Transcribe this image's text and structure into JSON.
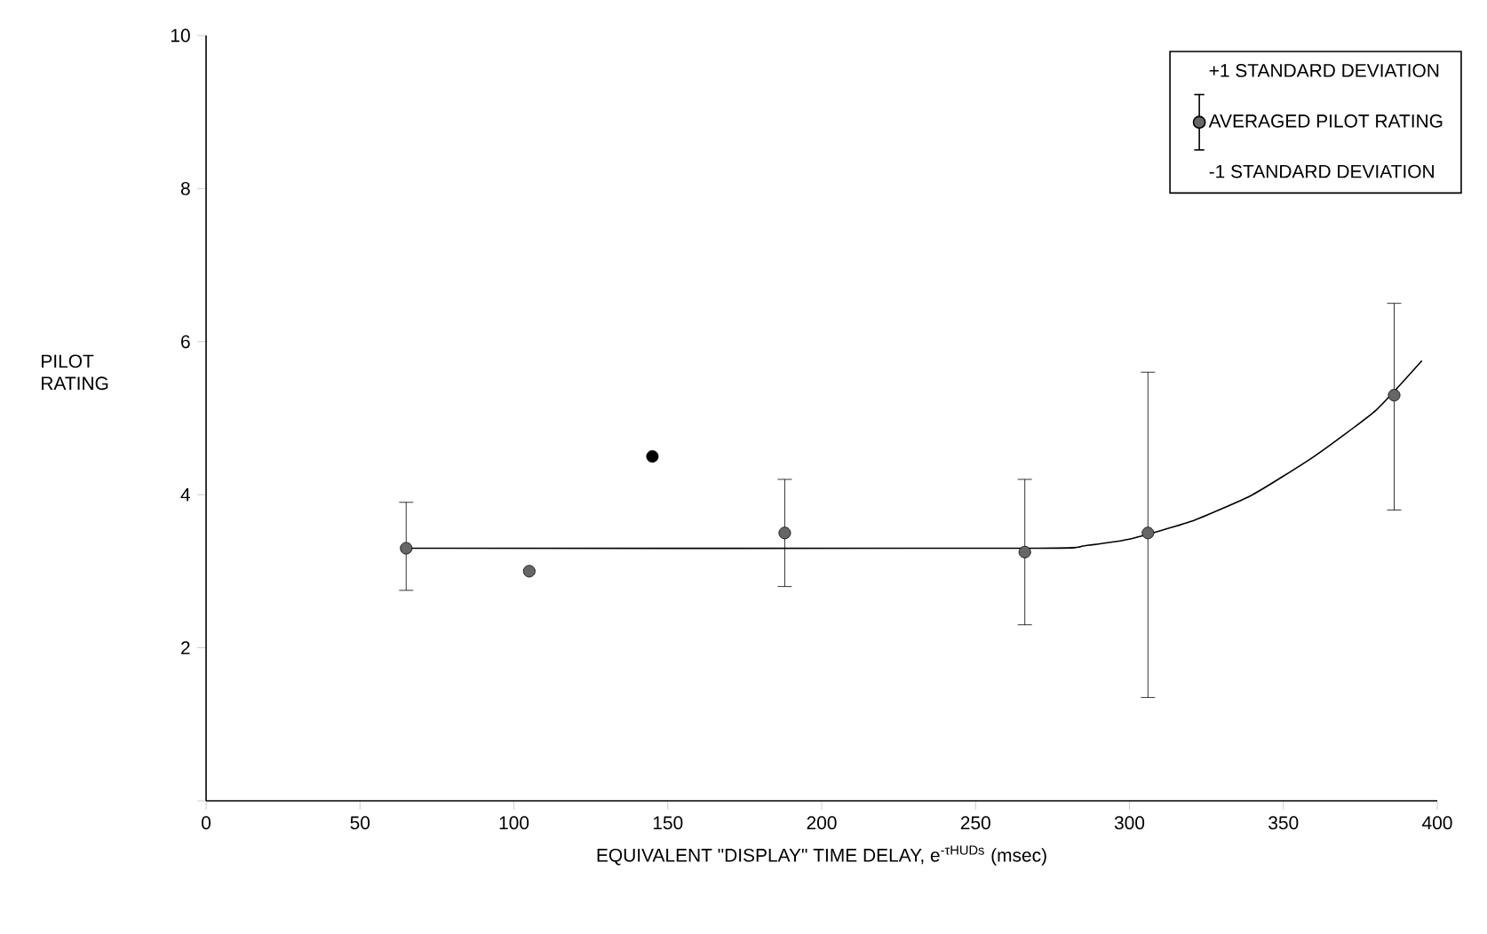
{
  "chart_data": {
    "type": "scatter",
    "xlabel": "EQUIVALENT \"DISPLAY\" TIME DELAY, e$^{-τHUDs}$ (msec)",
    "ylabel": "PILOT RATING",
    "xlim": [
      0,
      400
    ],
    "ylim": [
      0,
      10
    ],
    "xticks": [
      0,
      50,
      100,
      150,
      200,
      250,
      300,
      350,
      400
    ],
    "yticks": [
      {
        "value": 0,
        "label": null
      },
      2,
      4,
      6,
      8,
      10
    ],
    "legend": "top right",
    "annotations": [
      "+1 STANDARD DEVIATION",
      "-1 STANDARD DEVIATION"
    ],
    "series": [
      {
        "name": "AVERAGED PILOT RATING",
        "marker": "circle",
        "color": "#666666",
        "x": [
          65,
          105,
          188,
          266,
          306,
          386
        ],
        "values": [
          3.3,
          3.0,
          3.5,
          3.25,
          3.5,
          5.3
        ],
        "errors": [
          [
            2.75,
            3.9
          ],
          null,
          [
            2.8,
            4.2
          ],
          [
            2.3,
            4.2
          ],
          [
            1.35,
            5.6
          ],
          [
            3.8,
            6.5
          ]
        ]
      },
      {
        "marker": "circle",
        "color": "#000000",
        "x": [
          145
        ],
        "values": [
          4.5
        ]
      },
      {
        "type": "line",
        "color": "#000000",
        "marker": "none",
        "line_style": "solid",
        "x": [
          65,
          270,
          285,
          300,
          320,
          340,
          360,
          380,
          395
        ],
        "values": [
          3.3,
          3.3,
          3.33,
          3.42,
          3.65,
          4.0,
          4.5,
          5.1,
          5.75
        ]
      }
    ]
  }
}
